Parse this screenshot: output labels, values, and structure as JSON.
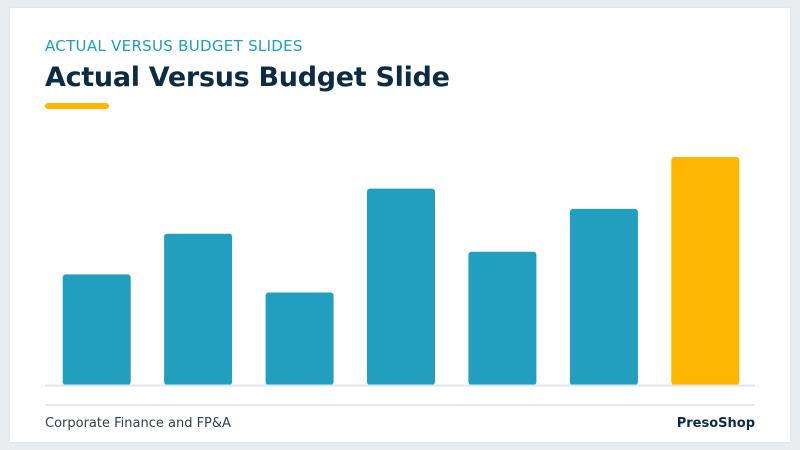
{
  "slide": {
    "kicker": "ACTUAL VERSUS BUDGET SLIDES",
    "title": "Actual Versus Budget Slide",
    "footer_left": "Corporate Finance and FP&A",
    "footer_right": "PresoShop"
  },
  "colors": {
    "kicker": "#1a9fbf",
    "title": "#0c2b45",
    "accent": "#ffb600",
    "bar_primary": "#229fbe",
    "bar_highlight": "#ffb600"
  },
  "chart_data": {
    "type": "bar",
    "title": "",
    "xlabel": "",
    "ylabel": "",
    "categories": [
      "",
      "",
      "",
      "",
      "",
      "",
      ""
    ],
    "values": [
      49,
      67,
      41,
      87,
      59,
      78,
      101
    ],
    "highlight_index": 6,
    "ylim": [
      0,
      105
    ],
    "grid": false,
    "legend": "none"
  }
}
